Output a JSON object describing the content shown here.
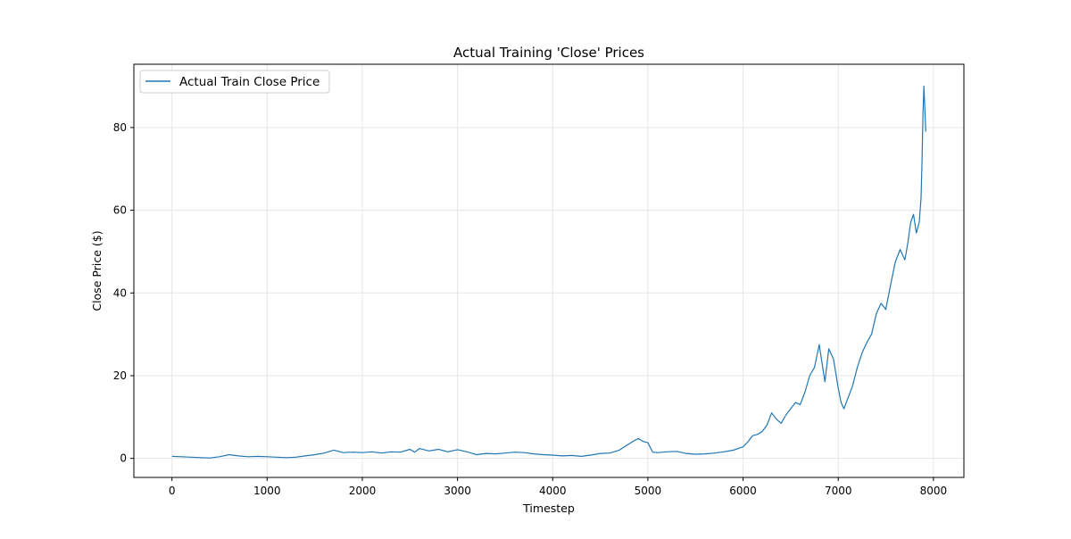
{
  "chart_data": {
    "type": "line",
    "title": "Actual Training 'Close' Prices",
    "xlabel": "Timestep",
    "ylabel": "Close Price ($)",
    "xlim": [
      -400,
      8320
    ],
    "ylim": [
      -4.6,
      95.3
    ],
    "xticks": [
      0,
      1000,
      2000,
      3000,
      4000,
      5000,
      6000,
      7000,
      8000
    ],
    "yticks": [
      0,
      20,
      40,
      60,
      80
    ],
    "grid": true,
    "legend": {
      "placement": "top-left"
    },
    "series": [
      {
        "name": "Actual Train Close Price",
        "color": "#1f77b4",
        "x": [
          0,
          100,
          200,
          300,
          400,
          500,
          600,
          700,
          800,
          900,
          1000,
          1100,
          1200,
          1300,
          1400,
          1500,
          1600,
          1700,
          1800,
          1900,
          2000,
          2100,
          2200,
          2300,
          2400,
          2500,
          2550,
          2600,
          2700,
          2800,
          2900,
          3000,
          3100,
          3200,
          3300,
          3400,
          3500,
          3600,
          3700,
          3800,
          3900,
          4000,
          4100,
          4200,
          4300,
          4400,
          4500,
          4600,
          4700,
          4800,
          4850,
          4900,
          4950,
          5000,
          5050,
          5100,
          5200,
          5300,
          5400,
          5500,
          5600,
          5700,
          5800,
          5900,
          6000,
          6050,
          6100,
          6150,
          6200,
          6250,
          6300,
          6350,
          6400,
          6450,
          6500,
          6550,
          6600,
          6650,
          6700,
          6750,
          6800,
          6830,
          6860,
          6900,
          6950,
          7000,
          7030,
          7060,
          7100,
          7150,
          7200,
          7250,
          7300,
          7350,
          7400,
          7450,
          7500,
          7550,
          7600,
          7650,
          7700,
          7730,
          7760,
          7790,
          7820,
          7850,
          7870,
          7880,
          7890,
          7900,
          7920
        ],
        "values": [
          0.5,
          0.4,
          0.3,
          0.2,
          0.1,
          0.4,
          0.9,
          0.6,
          0.4,
          0.5,
          0.4,
          0.3,
          0.2,
          0.3,
          0.6,
          0.9,
          1.3,
          2.0,
          1.4,
          1.5,
          1.4,
          1.6,
          1.3,
          1.6,
          1.5,
          2.2,
          1.5,
          2.4,
          1.8,
          2.2,
          1.6,
          2.1,
          1.6,
          0.9,
          1.2,
          1.1,
          1.3,
          1.5,
          1.4,
          1.1,
          0.9,
          0.8,
          0.6,
          0.7,
          0.5,
          0.8,
          1.2,
          1.3,
          2.0,
          3.5,
          4.2,
          4.8,
          4.1,
          3.8,
          1.5,
          1.4,
          1.6,
          1.7,
          1.2,
          1.0,
          1.1,
          1.3,
          1.6,
          2.0,
          2.8,
          4.0,
          5.5,
          5.8,
          6.5,
          8.0,
          11.0,
          9.5,
          8.5,
          10.5,
          12.0,
          13.5,
          13.0,
          16.0,
          20.0,
          22.0,
          27.5,
          23.0,
          18.5,
          26.5,
          24.0,
          17.0,
          13.5,
          12.0,
          14.5,
          17.5,
          22.0,
          25.5,
          28.0,
          30.0,
          35.0,
          37.5,
          36.0,
          42.0,
          47.5,
          50.5,
          48.0,
          52.0,
          57.0,
          59.0,
          54.5,
          57.0,
          63.0,
          72.0,
          83.0,
          90.0,
          79.0
        ]
      }
    ]
  }
}
